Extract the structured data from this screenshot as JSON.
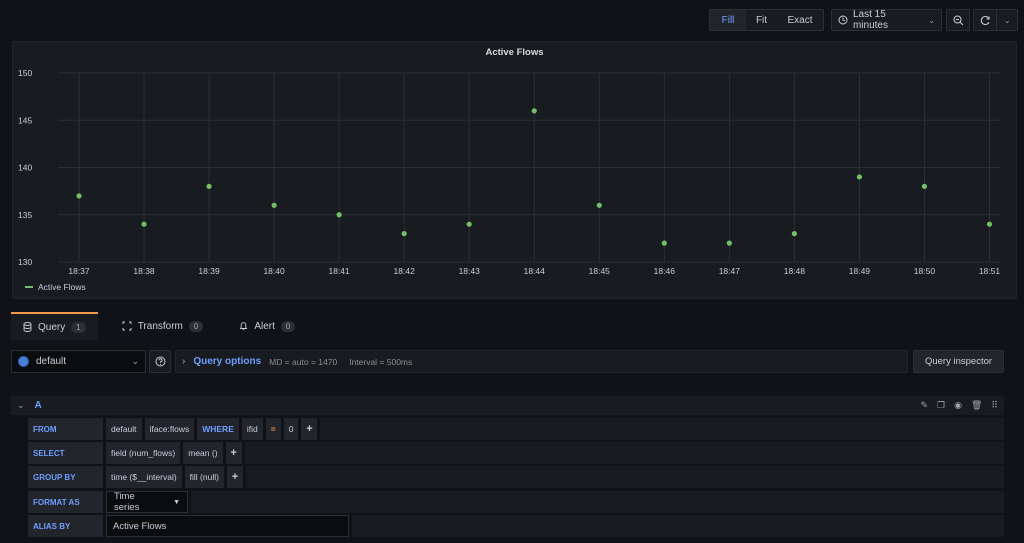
{
  "toolbar": {
    "fill_label": "Fill",
    "fit_label": "Fit",
    "exact_label": "Exact",
    "time_range": "Last 15 minutes",
    "icons": [
      "clock-icon",
      "chevron-down-icon",
      "zoom-out-icon",
      "refresh-icon",
      "chevron-down-icon"
    ]
  },
  "panel": {
    "title": "Active Flows"
  },
  "chart_data": {
    "type": "scatter",
    "title": "Active Flows",
    "x": [
      "18:37",
      "18:38",
      "18:39",
      "18:40",
      "18:41",
      "18:42",
      "18:43",
      "18:44",
      "18:45",
      "18:46",
      "18:47",
      "18:48",
      "18:49",
      "18:50",
      "18:51"
    ],
    "series": [
      {
        "name": "Active Flows",
        "values": [
          137,
          134,
          138,
          136,
          135,
          133,
          134,
          146,
          136,
          132,
          132,
          133,
          139,
          138,
          134
        ],
        "color": "#73bf69"
      }
    ],
    "yticks": [
      "130",
      "135",
      "140",
      "145",
      "150"
    ],
    "ylim": [
      130,
      150
    ],
    "grid": true,
    "legend": "bottom-left"
  },
  "tabs": [
    {
      "label": "Query",
      "count": "1",
      "icon": "database-icon"
    },
    {
      "label": "Transform",
      "count": "0",
      "icon": "transform-icon"
    },
    {
      "label": "Alert",
      "count": "0",
      "icon": "bell-icon"
    }
  ],
  "datasource": {
    "name": "default"
  },
  "query_options": {
    "title": "Query options",
    "md": "MD = auto = 1470",
    "interval": "Interval = 500ms",
    "inspector_label": "Query inspector"
  },
  "query": {
    "ref_id": "A",
    "from": {
      "label": "FROM",
      "policy": "default",
      "measurement": "iface:flows",
      "where_kw": "WHERE",
      "tag": "ifid",
      "operator": "=",
      "value": "0",
      "plus": "+"
    },
    "select": {
      "label": "SELECT",
      "field": "field (num_flows)",
      "agg": "mean ()",
      "plus": "+"
    },
    "group_by": {
      "label": "GROUP BY",
      "time": "time ($__interval)",
      "fill": "fill (null)",
      "plus": "+"
    },
    "format_as": {
      "label": "FORMAT AS",
      "value": "Time series"
    },
    "alias_by": {
      "label": "ALIAS BY",
      "value": "Active Flows"
    }
  }
}
